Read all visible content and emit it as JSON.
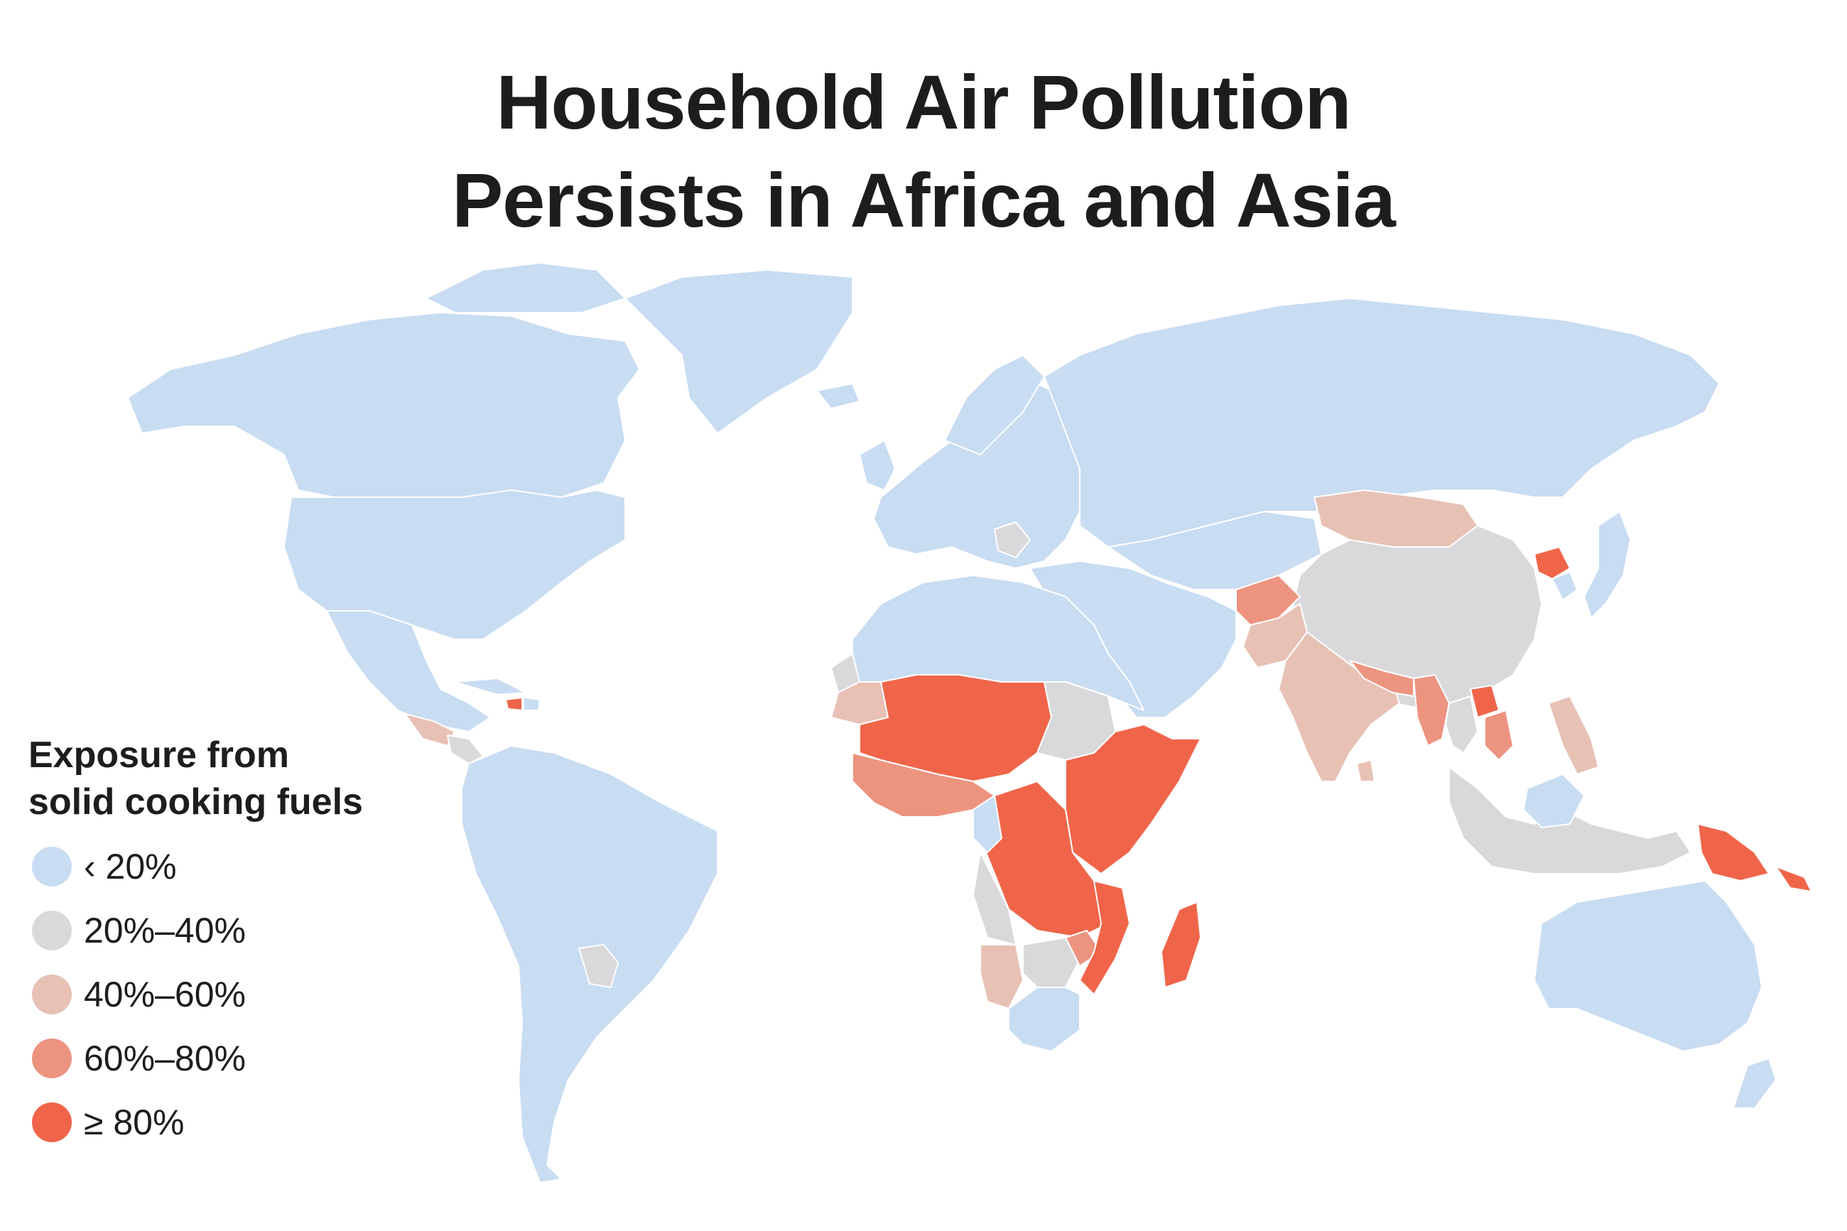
{
  "title": {
    "line1": "Household Air Pollution",
    "line2": "Persists in Africa and Asia"
  },
  "legend": {
    "title_line1": "Exposure from",
    "title_line2": "solid cooking fuels",
    "items": [
      {
        "label": "‹ 20%",
        "color": "#c8dcf2"
      },
      {
        "label": "20%–40%",
        "color": "#d9d9dc"
      },
      {
        "label": "40%–60%",
        "color": "#e8c1b5"
      },
      {
        "label": "60%–80%",
        "color": "#ec9480"
      },
      {
        "label": "≥ 80%",
        "color": "#f0654a"
      }
    ]
  },
  "colors": {
    "background": "#ffffff",
    "border": "#ffffff",
    "text": "#1d1d1d"
  }
}
